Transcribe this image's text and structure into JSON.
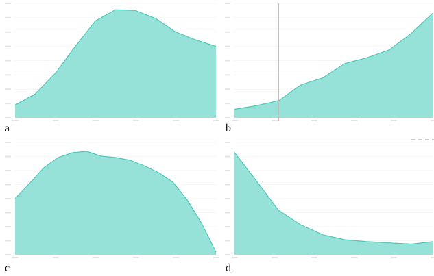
{
  "theme": {
    "area_fill": "#96e2d8",
    "area_stroke": "#4fc7b8",
    "grid": "#eeeeee",
    "cursor": "#bdbdbd",
    "tick_text": "#b0b0b0"
  },
  "panels": [
    {
      "label": "a"
    },
    {
      "label": "b"
    },
    {
      "label": "c"
    },
    {
      "label": "d"
    }
  ],
  "chart_data": [
    {
      "type": "area",
      "title": "",
      "x": [
        0,
        1,
        2,
        3,
        4,
        5,
        6,
        7,
        8,
        9,
        10
      ],
      "values": [
        0.8,
        1.5,
        2.8,
        4.5,
        6.1,
        6.8,
        6.75,
        6.25,
        5.4,
        4.9,
        4.5
      ],
      "ylim": [
        0,
        7.2
      ],
      "xlim": [
        0,
        10
      ],
      "grid": true
    },
    {
      "type": "area",
      "title": "",
      "x": [
        0,
        1,
        2,
        3,
        4,
        5,
        6,
        7,
        8,
        9
      ],
      "values": [
        0.6,
        0.85,
        1.2,
        2.3,
        2.8,
        3.8,
        4.2,
        4.75,
        5.9,
        7.35
      ],
      "ylim": [
        0,
        8
      ],
      "xlim": [
        0,
        9
      ],
      "cursor_x": 2,
      "grid": true
    },
    {
      "type": "area",
      "title": "",
      "x": [
        0,
        1,
        2,
        3,
        4,
        5,
        6,
        7,
        8,
        9,
        10,
        11,
        12,
        13,
        14
      ],
      "values": [
        4.1,
        5.2,
        6.35,
        7.1,
        7.45,
        7.55,
        7.2,
        7.1,
        6.9,
        6.5,
        6.0,
        5.3,
        4.0,
        2.3,
        0.2
      ],
      "ylim": [
        0,
        8.2
      ],
      "xlim": [
        0,
        14
      ],
      "grid": true
    },
    {
      "type": "area",
      "title": "",
      "x": [
        0,
        1,
        2,
        3,
        4,
        5,
        6,
        7,
        8,
        9
      ],
      "values": [
        8.2,
        5.9,
        3.55,
        2.4,
        1.6,
        1.2,
        1.05,
        0.95,
        0.85,
        1.05
      ],
      "ylim": [
        0,
        9
      ],
      "xlim": [
        0,
        9
      ],
      "grid": true
    }
  ]
}
